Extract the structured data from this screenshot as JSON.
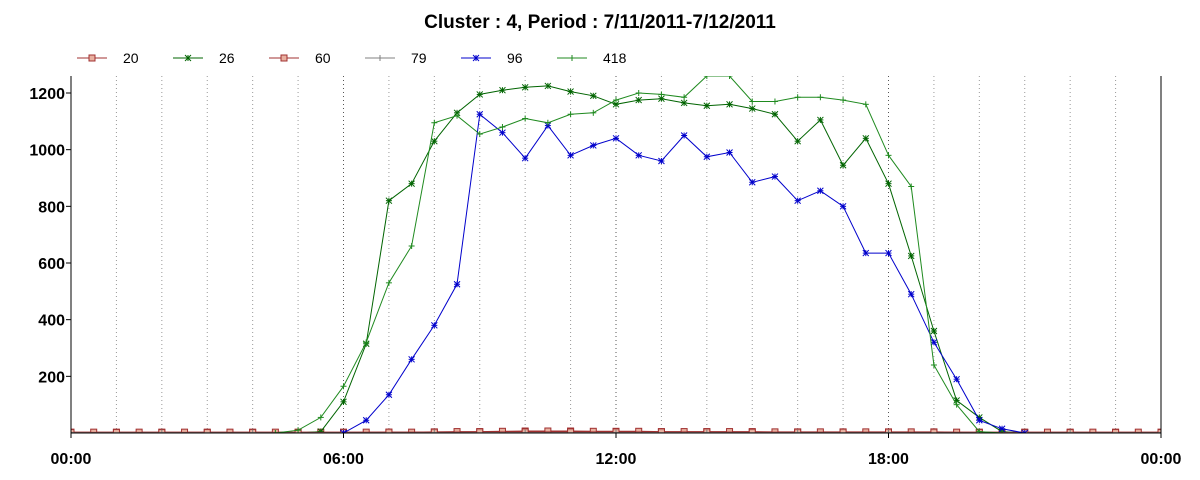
{
  "chart_data": {
    "type": "line",
    "title": "Cluster : 4, Period : 7/11/2011-7/12/2011",
    "xlabel": "",
    "ylabel": "",
    "x_ticks": [
      "00:00",
      "06:00",
      "12:00",
      "18:00",
      "00:00"
    ],
    "y_ticks": [
      200,
      400,
      600,
      800,
      1000,
      1200
    ],
    "xlim": [
      0,
      24
    ],
    "ylim": [
      0,
      1260
    ],
    "grid": "vertical dotted",
    "legend_position": "top-left",
    "series": [
      {
        "name": "20",
        "color": "#a03030",
        "marker": "square",
        "points": [
          [
            0,
            3
          ],
          [
            0.5,
            3
          ],
          [
            1,
            3
          ],
          [
            1.5,
            3
          ],
          [
            2,
            3
          ],
          [
            2.5,
            3
          ],
          [
            3,
            3
          ],
          [
            3.5,
            3
          ],
          [
            4,
            3
          ],
          [
            4.5,
            3
          ],
          [
            5,
            3
          ],
          [
            5.5,
            3
          ],
          [
            6,
            3
          ],
          [
            6.5,
            3
          ],
          [
            7,
            3
          ],
          [
            7.5,
            3
          ],
          [
            8,
            4
          ],
          [
            8.5,
            5
          ],
          [
            9,
            5
          ],
          [
            9.5,
            6
          ],
          [
            10,
            7
          ],
          [
            10.5,
            7
          ],
          [
            11,
            7
          ],
          [
            11.5,
            6
          ],
          [
            12,
            6
          ],
          [
            12.5,
            6
          ],
          [
            13,
            5
          ],
          [
            13.5,
            5
          ],
          [
            14,
            5
          ],
          [
            14.5,
            5
          ],
          [
            15,
            5
          ],
          [
            15.5,
            4
          ],
          [
            16,
            4
          ],
          [
            16.5,
            4
          ],
          [
            17,
            4
          ],
          [
            17.5,
            4
          ],
          [
            18,
            4
          ],
          [
            18.5,
            4
          ],
          [
            19,
            4
          ],
          [
            19.5,
            3
          ],
          [
            20,
            3
          ],
          [
            20.5,
            3
          ],
          [
            21,
            3
          ],
          [
            21.5,
            3
          ],
          [
            22,
            3
          ],
          [
            22.5,
            3
          ],
          [
            23,
            3
          ],
          [
            23.5,
            3
          ],
          [
            24,
            3
          ]
        ]
      },
      {
        "name": "26",
        "color": "#006400",
        "marker": "asterisk",
        "points": [
          [
            5,
            0
          ],
          [
            5.5,
            5
          ],
          [
            6,
            110
          ],
          [
            6.5,
            315
          ],
          [
            7,
            820
          ],
          [
            7.5,
            880
          ],
          [
            8,
            1030
          ],
          [
            8.5,
            1130
          ],
          [
            9,
            1195
          ],
          [
            9.5,
            1210
          ],
          [
            10,
            1220
          ],
          [
            10.5,
            1225
          ],
          [
            11,
            1205
          ],
          [
            11.5,
            1190
          ],
          [
            12,
            1160
          ],
          [
            12.5,
            1175
          ],
          [
            13,
            1180
          ],
          [
            13.5,
            1165
          ],
          [
            14,
            1155
          ],
          [
            14.5,
            1160
          ],
          [
            15,
            1145
          ],
          [
            15.5,
            1125
          ],
          [
            16,
            1030
          ],
          [
            16.5,
            1105
          ],
          [
            17,
            945
          ],
          [
            17.5,
            1040
          ],
          [
            18,
            880
          ],
          [
            18.5,
            625
          ],
          [
            19,
            360
          ],
          [
            19.5,
            115
          ],
          [
            20,
            55
          ],
          [
            20.5,
            5
          ],
          [
            21,
            0
          ]
        ]
      },
      {
        "name": "60",
        "color": "#a03030",
        "marker": "square",
        "points": [
          [
            0,
            2
          ],
          [
            1,
            2
          ],
          [
            2,
            2
          ],
          [
            3,
            2
          ],
          [
            4,
            2
          ],
          [
            5,
            2
          ],
          [
            6,
            2
          ],
          [
            7,
            3
          ],
          [
            8,
            3
          ],
          [
            9,
            4
          ],
          [
            10,
            4
          ],
          [
            11,
            4
          ],
          [
            12,
            4
          ],
          [
            13,
            4
          ],
          [
            14,
            4
          ],
          [
            15,
            3
          ],
          [
            16,
            3
          ],
          [
            17,
            3
          ],
          [
            18,
            3
          ],
          [
            19,
            3
          ],
          [
            20,
            2
          ],
          [
            21,
            2
          ],
          [
            22,
            2
          ],
          [
            23,
            2
          ],
          [
            24,
            2
          ]
        ]
      },
      {
        "name": "79",
        "color": "#808080",
        "marker": "plus",
        "points": [
          [
            0,
            1
          ],
          [
            2,
            1
          ],
          [
            4,
            1
          ],
          [
            6,
            1
          ],
          [
            8,
            1
          ],
          [
            10,
            1
          ],
          [
            12,
            1
          ],
          [
            14,
            1
          ],
          [
            16,
            1
          ],
          [
            18,
            1
          ],
          [
            20,
            1
          ],
          [
            22,
            1
          ],
          [
            24,
            1
          ]
        ]
      },
      {
        "name": "96",
        "color": "#0000cc",
        "marker": "asterisk",
        "points": [
          [
            6,
            0
          ],
          [
            6.5,
            45
          ],
          [
            7,
            135
          ],
          [
            7.5,
            260
          ],
          [
            8,
            380
          ],
          [
            8.5,
            525
          ],
          [
            9,
            1125
          ],
          [
            9.5,
            1060
          ],
          [
            10,
            970
          ],
          [
            10.5,
            1085
          ],
          [
            11,
            980
          ],
          [
            11.5,
            1015
          ],
          [
            12,
            1040
          ],
          [
            12.5,
            980
          ],
          [
            13,
            960
          ],
          [
            13.5,
            1050
          ],
          [
            14,
            975
          ],
          [
            14.5,
            990
          ],
          [
            15,
            885
          ],
          [
            15.5,
            905
          ],
          [
            16,
            820
          ],
          [
            16.5,
            855
          ],
          [
            17,
            800
          ],
          [
            17.5,
            635
          ],
          [
            18,
            635
          ],
          [
            18.5,
            490
          ],
          [
            19,
            320
          ],
          [
            19.5,
            190
          ],
          [
            20,
            45
          ],
          [
            20.5,
            15
          ],
          [
            21,
            0
          ]
        ]
      },
      {
        "name": "418",
        "color": "#1f8a1f",
        "marker": "plus",
        "points": [
          [
            4.5,
            0
          ],
          [
            5,
            10
          ],
          [
            5.5,
            55
          ],
          [
            6,
            165
          ],
          [
            6.5,
            320
          ],
          [
            7,
            530
          ],
          [
            7.5,
            660
          ],
          [
            8,
            1095
          ],
          [
            8.5,
            1120
          ],
          [
            9,
            1055
          ],
          [
            9.5,
            1080
          ],
          [
            10,
            1110
          ],
          [
            10.5,
            1095
          ],
          [
            11,
            1125
          ],
          [
            11.5,
            1130
          ],
          [
            12,
            1175
          ],
          [
            12.5,
            1200
          ],
          [
            13,
            1195
          ],
          [
            13.5,
            1185
          ],
          [
            14,
            1260
          ],
          [
            14.5,
            1260
          ],
          [
            15,
            1170
          ],
          [
            15.5,
            1170
          ],
          [
            16,
            1185
          ],
          [
            16.5,
            1185
          ],
          [
            17,
            1175
          ],
          [
            17.5,
            1160
          ],
          [
            18,
            980
          ],
          [
            18.5,
            870
          ],
          [
            19,
            240
          ],
          [
            19.5,
            100
          ],
          [
            20,
            5
          ],
          [
            20.5,
            0
          ]
        ]
      }
    ]
  }
}
